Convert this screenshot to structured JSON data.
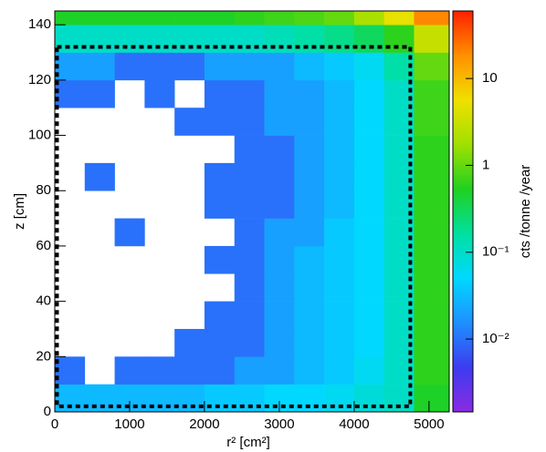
{
  "chart_data": {
    "type": "heatmap",
    "xlabel": "r² [cm²]",
    "ylabel": "z [cm]",
    "colorbar_label": "cts /tonne /year",
    "xlim": [
      0,
      5270
    ],
    "ylim": [
      0,
      145
    ],
    "xticks": [
      0,
      1000,
      2000,
      3000,
      4000,
      5000
    ],
    "yticks": [
      0,
      20,
      40,
      60,
      80,
      100,
      120,
      140
    ],
    "zlim": [
      0.00145,
      60
    ],
    "zscale": "log",
    "zticks": [
      {
        "value": 0.01,
        "label": "10⁻²"
      },
      {
        "value": 0.1,
        "label": "10⁻¹"
      },
      1,
      10
    ],
    "colormap": [
      "#8a2be2",
      "#3c3cf0",
      "#1e90ff",
      "#00d8ff",
      "#00e0a0",
      "#20d020",
      "#a0e000",
      "#f0e000",
      "#ff9000",
      "#ff2000"
    ],
    "fiducial_box": {
      "x": [
        30,
        4750
      ],
      "y": [
        2,
        132
      ],
      "color": "#000"
    },
    "xbins": [
      0,
      400,
      800,
      1200,
      1600,
      2000,
      2400,
      2800,
      3200,
      3600,
      4000,
      4400,
      4800,
      5270
    ],
    "ybins": [
      0,
      10,
      20,
      30,
      40,
      50,
      60,
      70,
      80,
      90,
      100,
      110,
      120,
      130,
      140,
      145
    ],
    "values": [
      [
        0.03,
        0.03,
        0.03,
        0.03,
        0.03,
        0.04,
        0.04,
        0.05,
        0.05,
        0.06,
        0.08,
        0.1,
        0.5
      ],
      [
        0.01,
        null,
        0.01,
        0.01,
        0.01,
        0.01,
        0.02,
        0.02,
        0.03,
        0.04,
        0.06,
        0.1,
        0.6
      ],
      [
        null,
        null,
        null,
        null,
        0.01,
        0.01,
        0.01,
        0.02,
        0.03,
        0.04,
        0.05,
        0.1,
        0.6
      ],
      [
        null,
        null,
        null,
        null,
        null,
        0.01,
        0.01,
        0.02,
        0.03,
        0.04,
        0.05,
        0.1,
        0.6
      ],
      [
        null,
        null,
        null,
        null,
        null,
        null,
        0.01,
        0.02,
        0.03,
        0.04,
        0.05,
        0.1,
        0.6
      ],
      [
        null,
        null,
        null,
        null,
        null,
        0.01,
        0.01,
        0.02,
        0.03,
        0.04,
        0.05,
        0.1,
        0.6
      ],
      [
        null,
        null,
        0.01,
        null,
        null,
        null,
        0.01,
        0.02,
        0.02,
        0.04,
        0.05,
        0.1,
        0.6
      ],
      [
        null,
        null,
        null,
        null,
        null,
        0.01,
        0.01,
        0.01,
        0.02,
        0.03,
        0.05,
        0.1,
        0.6
      ],
      [
        null,
        0.01,
        null,
        null,
        null,
        0.01,
        0.01,
        0.01,
        0.02,
        0.03,
        0.05,
        0.1,
        0.6
      ],
      [
        null,
        null,
        null,
        null,
        null,
        null,
        0.01,
        0.01,
        0.02,
        0.03,
        0.05,
        0.1,
        0.6
      ],
      [
        null,
        null,
        null,
        null,
        0.01,
        0.01,
        0.01,
        0.02,
        0.02,
        0.03,
        0.05,
        0.1,
        0.7
      ],
      [
        0.01,
        0.01,
        null,
        0.01,
        null,
        0.01,
        0.01,
        0.02,
        0.02,
        0.03,
        0.05,
        0.1,
        0.7
      ],
      [
        0.02,
        0.02,
        0.01,
        0.01,
        0.01,
        0.02,
        0.02,
        0.02,
        0.03,
        0.04,
        0.06,
        0.15,
        1
      ],
      [
        0.1,
        0.1,
        0.1,
        0.1,
        0.1,
        0.1,
        0.1,
        0.12,
        0.15,
        0.2,
        0.3,
        0.6,
        3
      ],
      [
        0.5,
        0.5,
        0.5,
        0.5,
        0.5,
        0.5,
        0.6,
        0.7,
        0.8,
        1,
        2,
        5,
        20
      ]
    ]
  }
}
